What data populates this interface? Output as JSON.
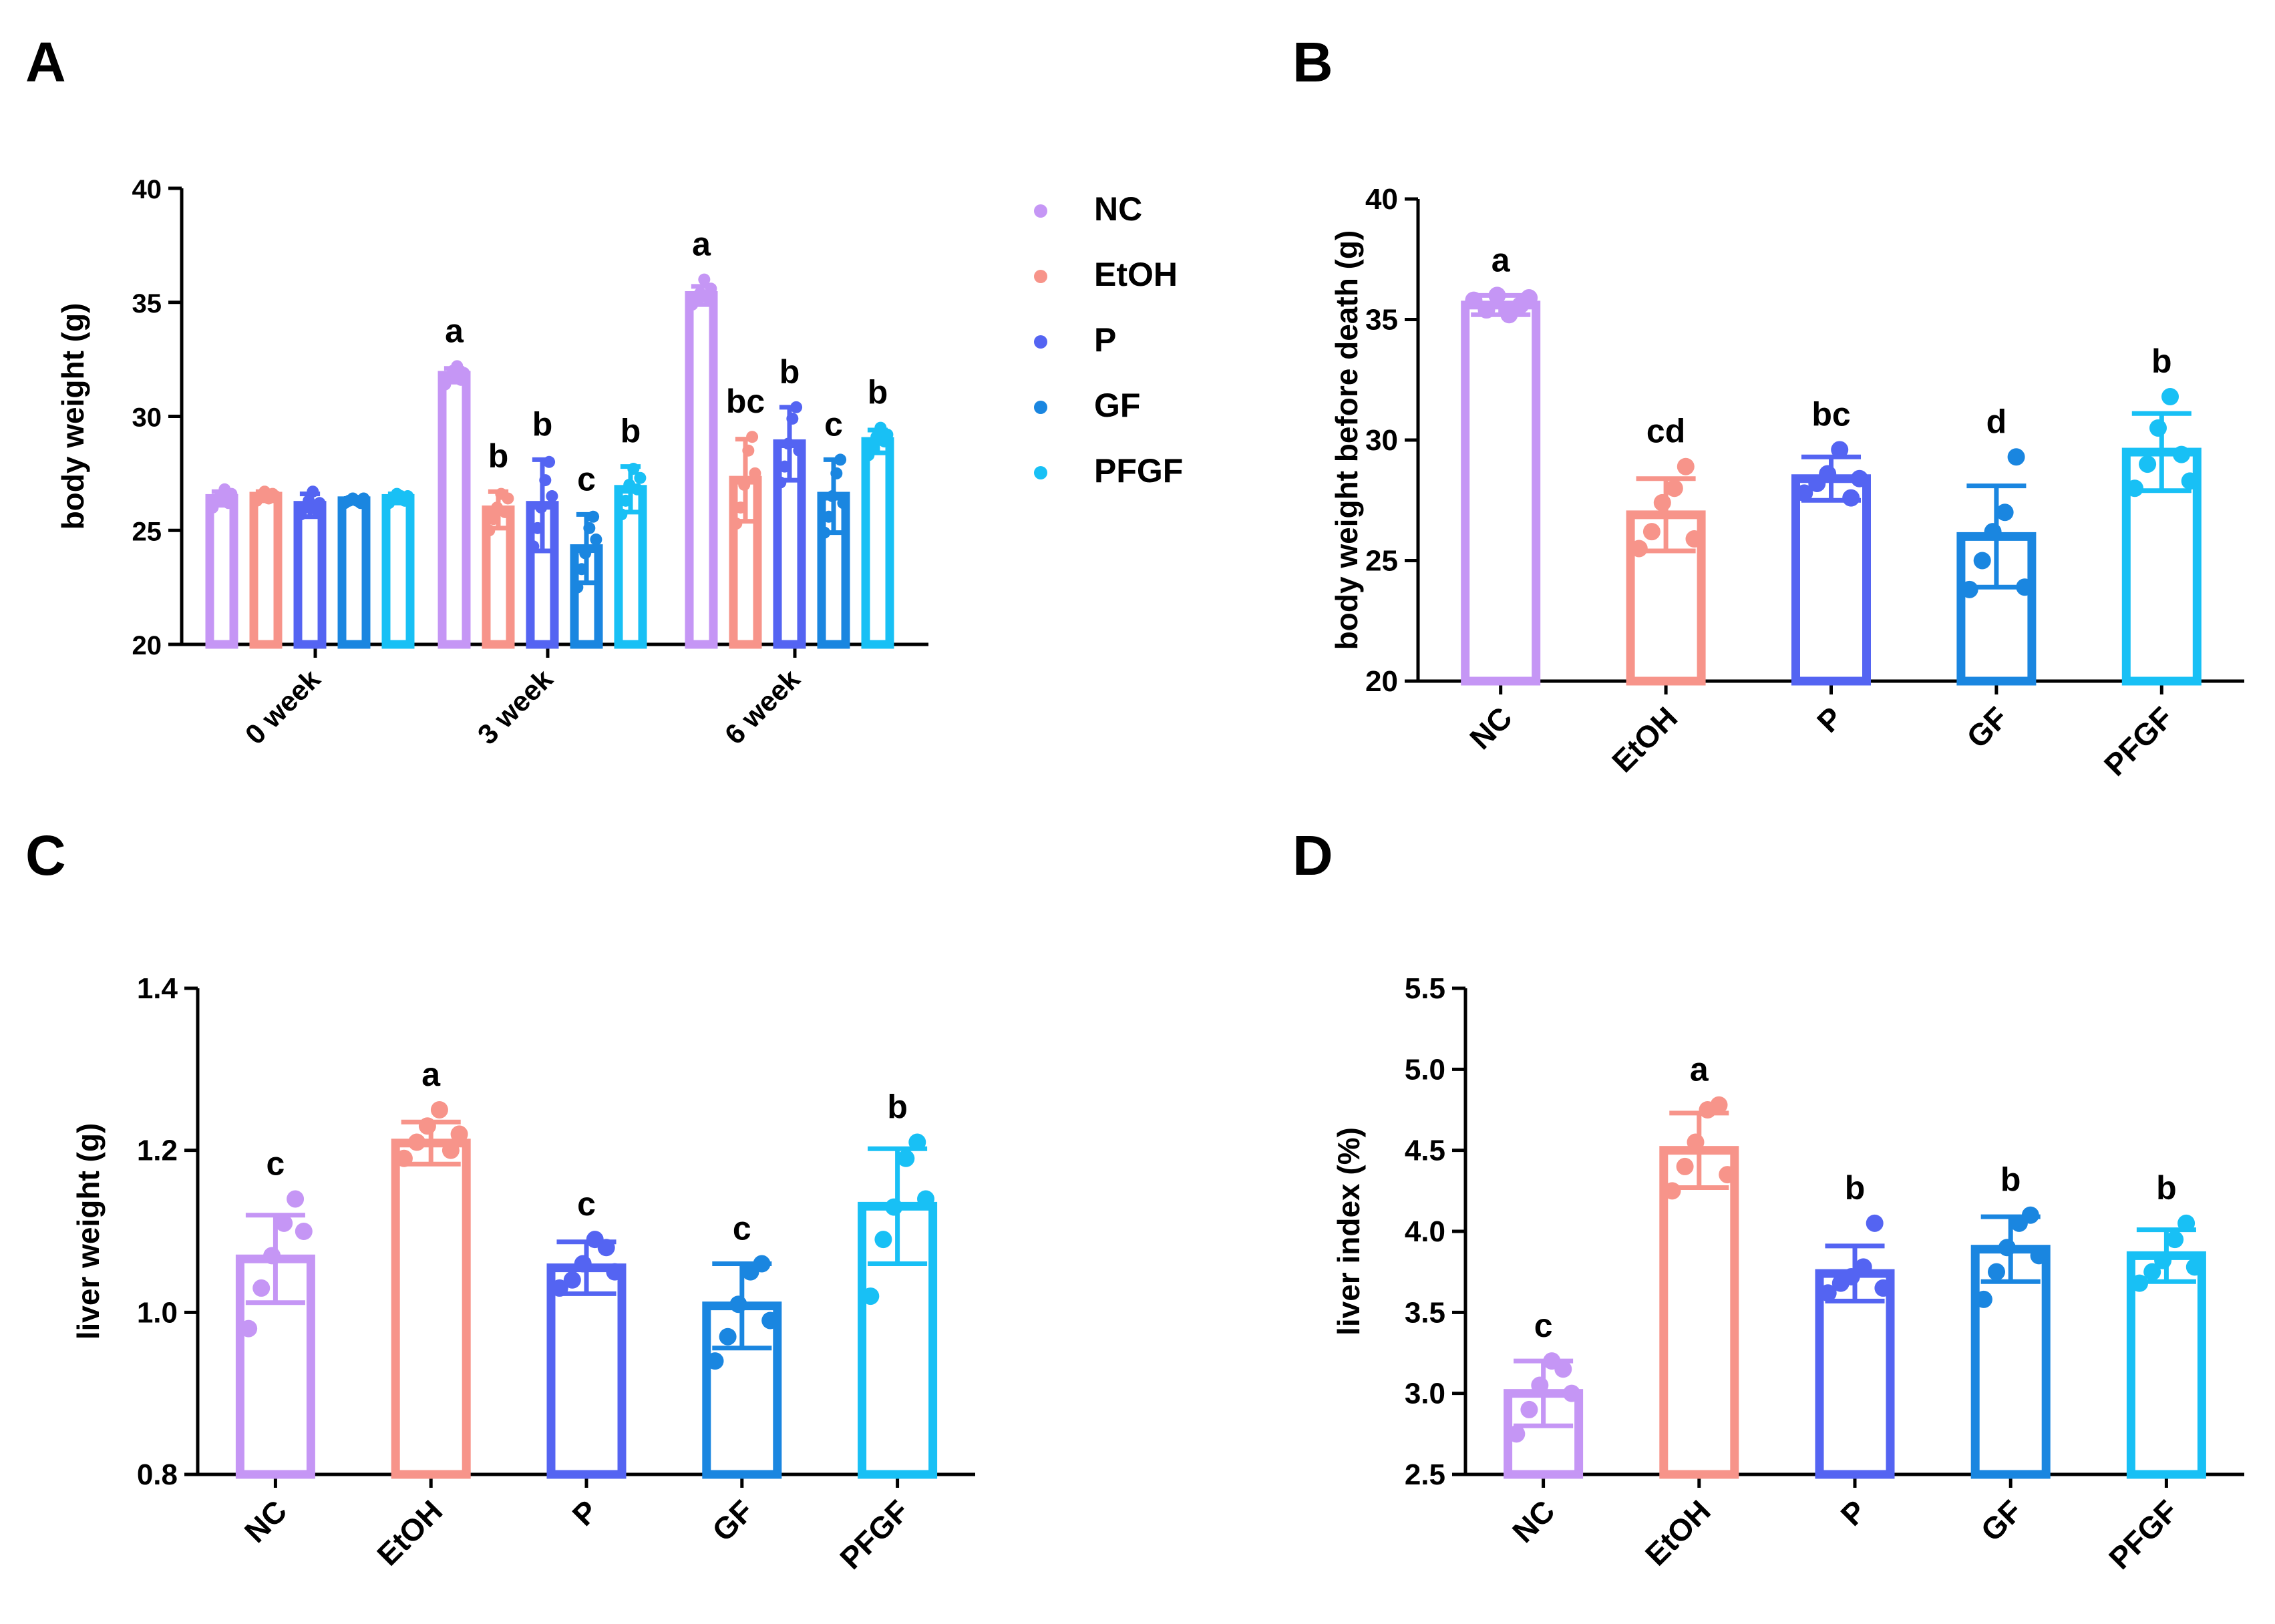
{
  "colors": {
    "NC": "#c596f5",
    "EtOH": "#f7948a",
    "P": "#5464f2",
    "GF": "#1a86e0",
    "PFGF": "#18c0f5",
    "axis": "#000000"
  },
  "chart_data": [
    {
      "panel": "A",
      "type": "bar",
      "title": "",
      "xlabel": "",
      "ylabel": "body weight (g)",
      "ylim": [
        20,
        40
      ],
      "yticks": [
        20,
        25,
        30,
        35,
        40
      ],
      "categories": [
        "0 week",
        "3 week",
        "6 week"
      ],
      "legend_position": "right",
      "series": [
        {
          "name": "NC",
          "values": [
            26.4,
            31.8,
            35.3
          ],
          "sd": [
            0.3,
            0.3,
            0.4
          ],
          "letters": [
            "",
            "a",
            "a"
          ],
          "points": [
            [
              26.0,
              26.3,
              26.5,
              26.8,
              26.2,
              26.6
            ],
            [
              31.4,
              31.7,
              32.0,
              32.2,
              31.6,
              31.9
            ],
            [
              34.9,
              35.1,
              35.4,
              36.0,
              35.2,
              35.6
            ]
          ]
        },
        {
          "name": "EtOH",
          "values": [
            26.5,
            25.9,
            27.2
          ],
          "sd": [
            0.2,
            0.8,
            1.8
          ],
          "letters": [
            "",
            "b",
            "bc"
          ],
          "points": [
            [
              26.3,
              26.5,
              26.7,
              26.4,
              26.6,
              26.5
            ],
            [
              25.0,
              25.5,
              26.0,
              26.6,
              25.8,
              26.4
            ],
            [
              25.3,
              26.0,
              27.0,
              28.5,
              29.1,
              27.5
            ]
          ]
        },
        {
          "name": "P",
          "values": [
            26.1,
            26.1,
            28.8
          ],
          "sd": [
            0.5,
            2.0,
            1.6
          ],
          "letters": [
            "",
            "b",
            "b"
          ],
          "points": [
            [
              25.7,
              26.0,
              26.3,
              26.7,
              25.9,
              26.2
            ],
            [
              24.3,
              25.1,
              26.0,
              27.2,
              28.0,
              26.5
            ],
            [
              27.1,
              27.8,
              28.8,
              29.9,
              30.4,
              28.5
            ]
          ]
        },
        {
          "name": "GF",
          "values": [
            26.3,
            24.2,
            26.5
          ],
          "sd": [
            0.1,
            1.5,
            1.6
          ],
          "letters": [
            "",
            "c",
            "c"
          ],
          "points": [
            [
              26.2,
              26.3,
              26.4,
              26.3,
              26.2,
              26.4
            ],
            [
              22.5,
              23.3,
              24.0,
              25.1,
              25.6,
              24.6
            ],
            [
              24.9,
              25.6,
              26.5,
              27.5,
              28.1,
              26.2
            ]
          ]
        },
        {
          "name": "PFGF",
          "values": [
            26.4,
            26.8,
            28.9
          ],
          "sd": [
            0.2,
            1.0,
            0.5
          ],
          "letters": [
            "",
            "b",
            "b"
          ],
          "points": [
            [
              26.2,
              26.4,
              26.6,
              26.5,
              26.3,
              26.5
            ],
            [
              25.7,
              26.3,
              27.0,
              27.7,
              26.8,
              27.3
            ],
            [
              28.3,
              28.7,
              29.1,
              29.5,
              28.9,
              29.2
            ]
          ]
        }
      ]
    },
    {
      "panel": "B",
      "type": "bar",
      "xlabel": "",
      "ylabel": "body weight before death (g)",
      "ylim": [
        20,
        40
      ],
      "yticks": [
        20,
        25,
        30,
        35,
        40
      ],
      "categories": [
        "NC",
        "EtOH",
        "P",
        "GF",
        "PFGF"
      ],
      "values": [
        35.6,
        26.9,
        28.4,
        26.0,
        29.5
      ],
      "sd": [
        0.4,
        1.5,
        0.9,
        2.1,
        1.6
      ],
      "letters": [
        "a",
        "cd",
        "bc",
        "d",
        "b"
      ],
      "points": [
        [
          35.8,
          35.4,
          36.0,
          35.2,
          35.6,
          35.9
        ],
        [
          25.5,
          26.2,
          27.4,
          28.0,
          28.9,
          25.9
        ],
        [
          27.8,
          28.2,
          28.6,
          29.6,
          27.6,
          28.4
        ],
        [
          23.8,
          25.0,
          26.2,
          27.0,
          29.3,
          23.9
        ],
        [
          28.0,
          29.0,
          30.5,
          31.8,
          29.4,
          28.3
        ]
      ]
    },
    {
      "panel": "C",
      "type": "bar",
      "xlabel": "",
      "ylabel": "liver weight (g)",
      "ylim": [
        0.8,
        1.4
      ],
      "yticks": [
        "0.8",
        "1.0",
        "1.2",
        "1.4"
      ],
      "categories": [
        "NC",
        "EtOH",
        "P",
        "GF",
        "PFGF"
      ],
      "values": [
        1.066,
        1.209,
        1.055,
        1.008,
        1.131
      ],
      "sd": [
        0.054,
        0.026,
        0.032,
        0.052,
        0.071
      ],
      "letters": [
        "c",
        "a",
        "c",
        "c",
        "b"
      ],
      "points": [
        [
          0.98,
          1.03,
          1.07,
          1.11,
          1.14,
          1.1
        ],
        [
          1.19,
          1.21,
          1.23,
          1.25,
          1.2,
          1.22
        ],
        [
          1.03,
          1.04,
          1.06,
          1.09,
          1.08,
          1.05
        ],
        [
          0.94,
          0.97,
          1.01,
          1.05,
          1.06,
          0.99
        ],
        [
          1.02,
          1.09,
          1.13,
          1.19,
          1.21,
          1.14
        ]
      ]
    },
    {
      "panel": "D",
      "type": "bar",
      "xlabel": "",
      "ylabel": "liver index (%)",
      "ylim": [
        2.5,
        5.5
      ],
      "yticks": [
        "2.5",
        "3.0",
        "3.5",
        "4.0",
        "4.5",
        "5.0",
        "5.5"
      ],
      "categories": [
        "NC",
        "EtOH",
        "P",
        "GF",
        "PFGF"
      ],
      "values": [
        3.0,
        4.5,
        3.74,
        3.89,
        3.85
      ],
      "sd": [
        0.2,
        0.23,
        0.17,
        0.2,
        0.16
      ],
      "letters": [
        "c",
        "a",
        "b",
        "b",
        "b"
      ],
      "points": [
        [
          2.75,
          2.9,
          3.05,
          3.2,
          3.15,
          3.0
        ],
        [
          4.25,
          4.4,
          4.55,
          4.75,
          4.78,
          4.35
        ],
        [
          3.62,
          3.68,
          3.72,
          3.78,
          4.05,
          3.65
        ],
        [
          3.58,
          3.75,
          3.9,
          4.05,
          4.1,
          3.85
        ],
        [
          3.68,
          3.75,
          3.82,
          3.95,
          4.05,
          3.78
        ]
      ]
    }
  ],
  "panel_letters": [
    "A",
    "B",
    "C",
    "D"
  ]
}
